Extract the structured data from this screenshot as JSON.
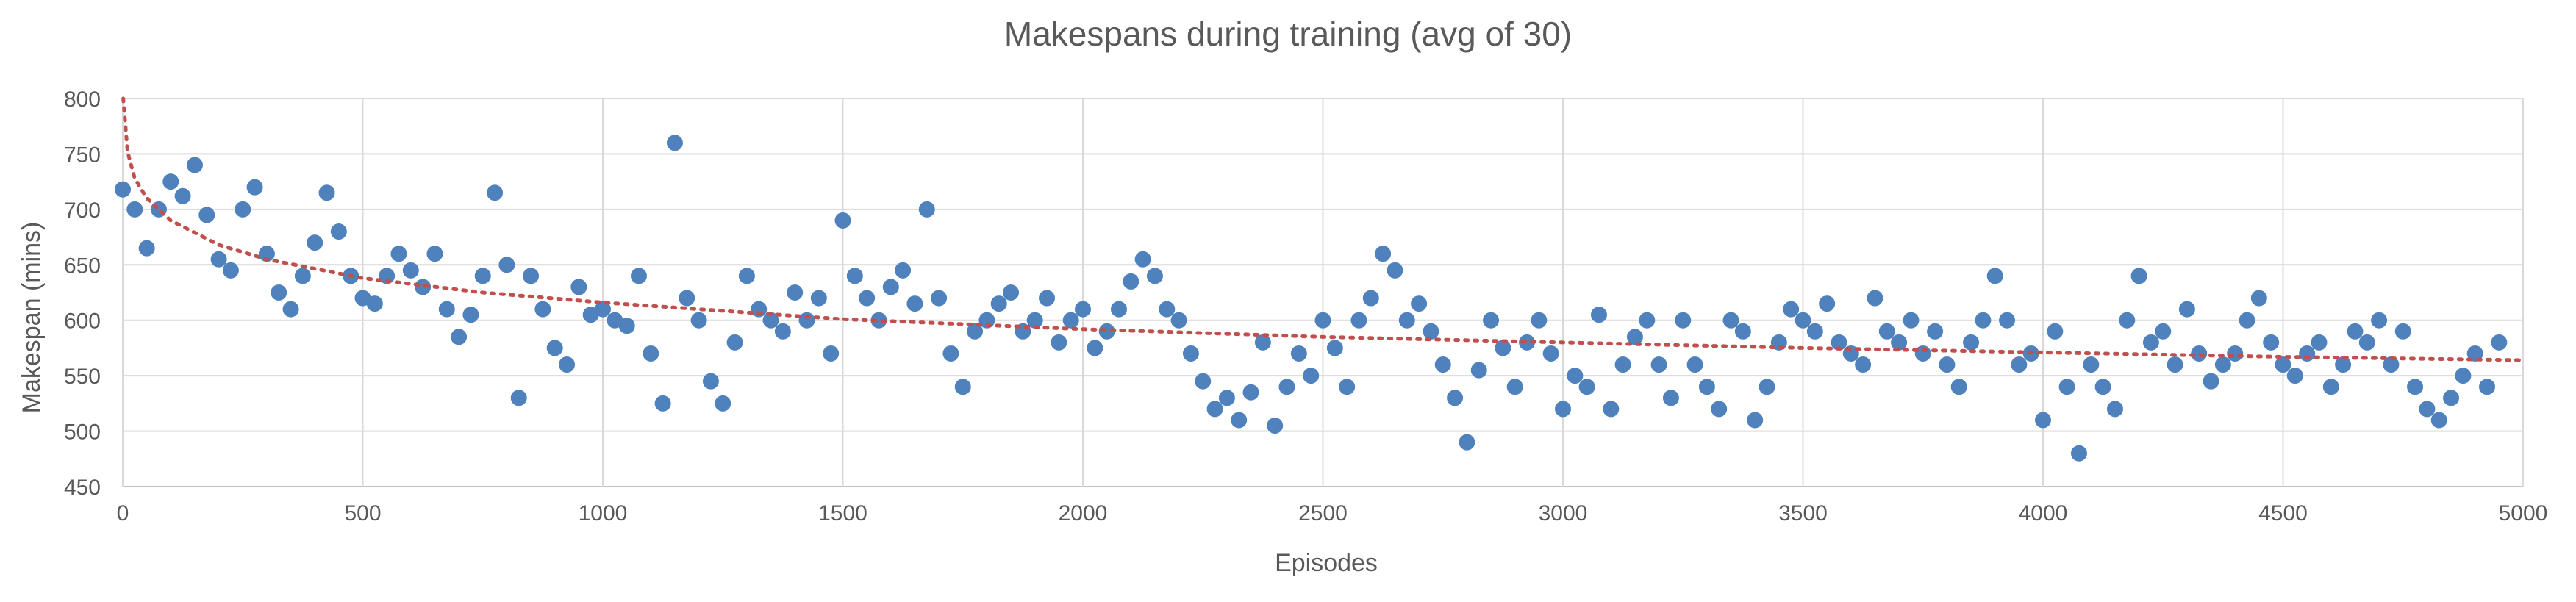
{
  "chart_data": {
    "type": "scatter",
    "title": "Makespans during training (avg of 30)",
    "xlabel": "Episodes",
    "ylabel": "Makespan (mins)",
    "xlim": [
      0,
      5000
    ],
    "ylim": [
      450,
      800
    ],
    "x_ticks": [
      0,
      500,
      1000,
      1500,
      2000,
      2500,
      3000,
      3500,
      4000,
      4500,
      5000
    ],
    "y_ticks": [
      450,
      500,
      550,
      600,
      650,
      700,
      750,
      800
    ],
    "grid": true,
    "legend": "none",
    "point_color": "#4f81bd",
    "trendline": {
      "style": "dotted",
      "color": "#c0504d",
      "type": "logarithmic",
      "x": [
        1,
        10,
        25,
        50,
        100,
        200,
        300,
        500,
        750,
        1000,
        1500,
        2000,
        2500,
        3000,
        3500,
        4000,
        4500,
        5000
      ],
      "y": [
        800,
        752,
        728,
        710,
        690,
        668,
        655,
        638,
        625,
        616,
        601,
        592,
        585,
        580,
        575,
        571,
        567,
        564
      ]
    },
    "series": [
      {
        "x": [
          0,
          25,
          50,
          75,
          100,
          125,
          150,
          175,
          200,
          225,
          250,
          275,
          300,
          325,
          350,
          375,
          400,
          425,
          450,
          475,
          500,
          525,
          550,
          575,
          600,
          625,
          650,
          675,
          700,
          725,
          750,
          775,
          800,
          825,
          850,
          875,
          900,
          925,
          950,
          975,
          1000,
          1025,
          1050,
          1075,
          1100,
          1125,
          1150,
          1175,
          1200,
          1225,
          1250,
          1275,
          1300,
          1325,
          1350,
          1375,
          1400,
          1425,
          1450,
          1475,
          1500,
          1525,
          1550,
          1575,
          1600,
          1625,
          1650,
          1675,
          1700,
          1725,
          1750,
          1775,
          1800,
          1825,
          1850,
          1875,
          1900,
          1925,
          1950,
          1975,
          2000,
          2025,
          2050,
          2075,
          2100,
          2125,
          2150,
          2175,
          2200,
          2225,
          2250,
          2275,
          2300,
          2325,
          2350,
          2375,
          2400,
          2425,
          2450,
          2475,
          2500,
          2525,
          2550,
          2575,
          2600,
          2625,
          2650,
          2675,
          2700,
          2725,
          2750,
          2775,
          2800,
          2825,
          2850,
          2875,
          2900,
          2925,
          2950,
          2975,
          3000,
          3025,
          3050,
          3075,
          3100,
          3125,
          3150,
          3175,
          3200,
          3225,
          3250,
          3275,
          3300,
          3325,
          3350,
          3375,
          3400,
          3425,
          3450,
          3475,
          3500,
          3525,
          3550,
          3575,
          3600,
          3625,
          3650,
          3675,
          3700,
          3725,
          3750,
          3775,
          3800,
          3825,
          3850,
          3875,
          3900,
          3925,
          3950,
          3975,
          4000,
          4025,
          4050,
          4075,
          4100,
          4125,
          4150,
          4175,
          4200,
          4225,
          4250,
          4275,
          4300,
          4325,
          4350,
          4375,
          4400,
          4425,
          4450,
          4475,
          4500,
          4525,
          4550,
          4575,
          4600,
          4625,
          4650,
          4675,
          4700,
          4725,
          4750,
          4775,
          4800,
          4825,
          4850,
          4875,
          4900,
          4925,
          4950
        ],
        "y": [
          718,
          700,
          665,
          700,
          725,
          712,
          740,
          695,
          655,
          645,
          700,
          720,
          660,
          625,
          610,
          640,
          670,
          715,
          680,
          640,
          620,
          615,
          640,
          660,
          645,
          630,
          660,
          610,
          585,
          605,
          640,
          715,
          650,
          530,
          640,
          610,
          575,
          560,
          630,
          605,
          610,
          600,
          595,
          640,
          570,
          525,
          760,
          620,
          600,
          545,
          525,
          580,
          640,
          610,
          600,
          590,
          625,
          600,
          620,
          570,
          690,
          640,
          620,
          600,
          630,
          645,
          615,
          700,
          620,
          570,
          540,
          590,
          600,
          615,
          625,
          590,
          600,
          620,
          580,
          600,
          610,
          575,
          590,
          610,
          635,
          655,
          640,
          610,
          600,
          570,
          545,
          520,
          530,
          510,
          535,
          580,
          505,
          540,
          570,
          550,
          600,
          575,
          540,
          600,
          620,
          660,
          645,
          600,
          615,
          590,
          560,
          530,
          490,
          555,
          600,
          575,
          540,
          580,
          600,
          570,
          520,
          550,
          540,
          605,
          520,
          560,
          585,
          600,
          560,
          530,
          600,
          560,
          540,
          520,
          600,
          590,
          510,
          540,
          580,
          610,
          600,
          590,
          615,
          580,
          570,
          560,
          620,
          590,
          580,
          600,
          570,
          590,
          560,
          540,
          580,
          600,
          640,
          600,
          560,
          570,
          510,
          590,
          540,
          480,
          560,
          540,
          520,
          600,
          640,
          580,
          590,
          560,
          610,
          570,
          545,
          560,
          570,
          600,
          620,
          580,
          560,
          550,
          570,
          580,
          540,
          560,
          590,
          580,
          600,
          560,
          590,
          540,
          520,
          510,
          530,
          550,
          570,
          540,
          580
        ]
      }
    ]
  }
}
